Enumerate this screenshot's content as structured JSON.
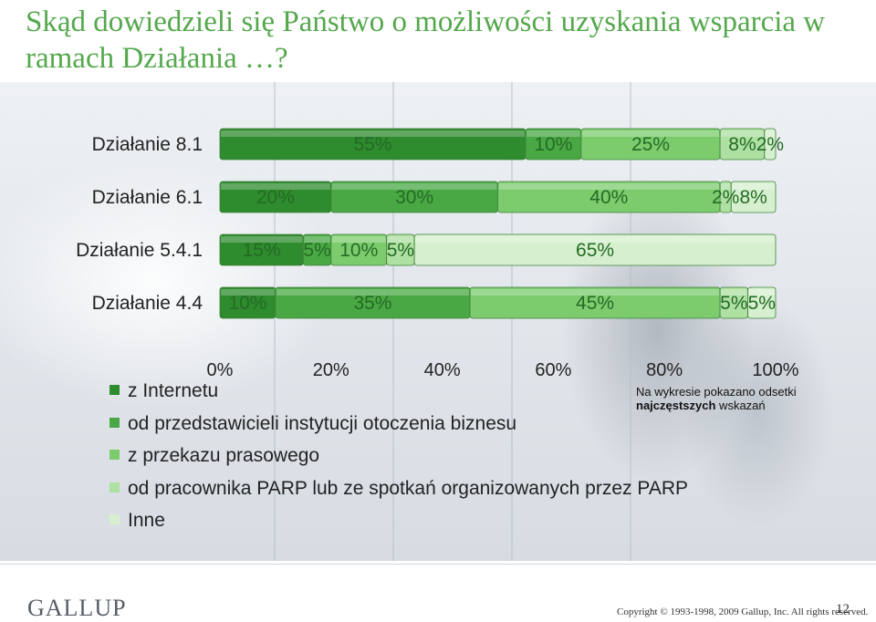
{
  "title": "Skąd dowiedzieli się Państwo o możliwości uzyskania wsparcia w ramach Działania …?",
  "note": {
    "line1": "Na wykresie pokazano odsetki",
    "line2_bold": "najczęstszych",
    "line2_rest": " wskazań"
  },
  "footer": {
    "logo": "GALLUP",
    "copyright": "Copyright © 1993-1998, 2009 Gallup, Inc. All rights reserved.",
    "page": "12"
  },
  "colors": {
    "z_internetu": "#2e8b2e",
    "od_przedstawicieli": "#49a844",
    "z_przekazu": "#7ccc6e",
    "od_pracownika": "#aee0a2",
    "inne": "#d6f0cf"
  },
  "chart_data": {
    "type": "bar",
    "orientation": "horizontal",
    "stacked": true,
    "categories": [
      "Działanie 8.1",
      "Działanie 6.1",
      "Działanie 5.4.1",
      "Działanie 4.4"
    ],
    "series": [
      {
        "name": "z Internetu",
        "values": [
          55,
          20,
          15,
          10
        ],
        "labels": [
          "55%",
          "20%",
          "15%",
          "10%"
        ]
      },
      {
        "name": "od przedstawicieli instytucji otoczenia biznesu",
        "values": [
          10,
          30,
          5,
          35
        ],
        "labels": [
          "10%",
          "30%",
          "5%",
          "35%"
        ]
      },
      {
        "name": "z przekazu prasowego",
        "values": [
          25,
          40,
          10,
          45
        ],
        "labels": [
          "25%",
          "40%",
          "10%",
          "45%"
        ]
      },
      {
        "name": "od pracownika PARP lub ze spotkań organizowanych przez PARP",
        "values": [
          8,
          2,
          5,
          5
        ],
        "labels": [
          "8%",
          "2%",
          "5%",
          "5%"
        ]
      },
      {
        "name": "Inne",
        "values": [
          2,
          8,
          65,
          5
        ],
        "labels": [
          "2%",
          "8%",
          "65%",
          "5%"
        ]
      }
    ],
    "xticks": [
      "0%",
      "20%",
      "40%",
      "60%",
      "80%",
      "100%"
    ],
    "xlim": [
      0,
      100
    ],
    "grid": false,
    "legend": "bottom-left"
  }
}
